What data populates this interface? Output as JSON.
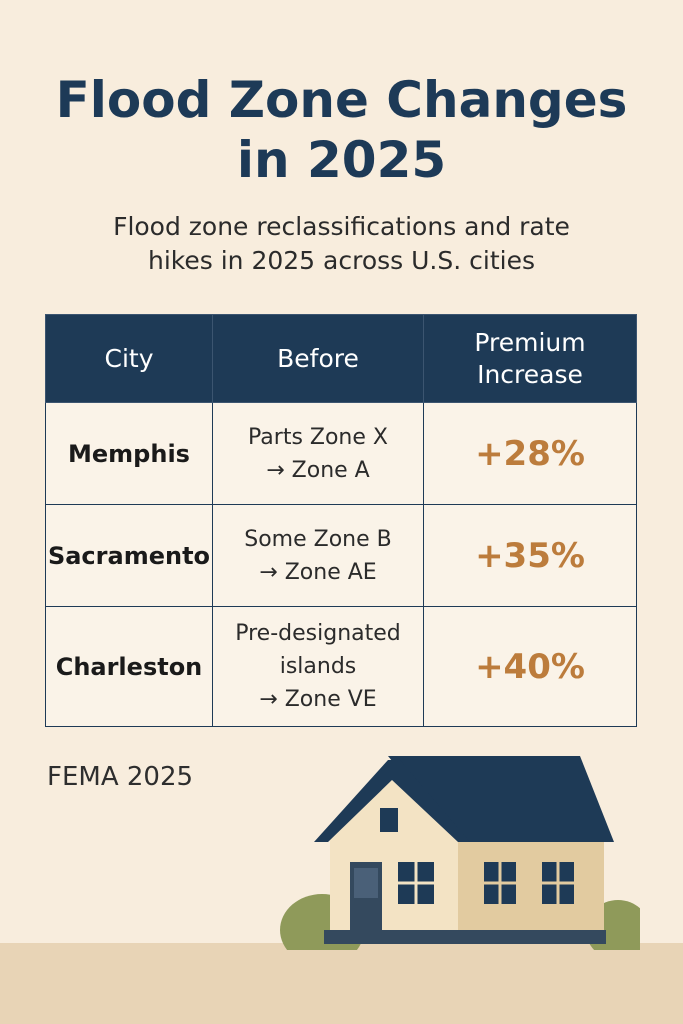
{
  "title": "Flood Zone Changes in 2025",
  "subtitle": "Flood zone reclassifications and rate hikes in 2025 across U.S. cities",
  "table": {
    "headers": [
      "City",
      "Before",
      "Premium Increase"
    ],
    "rows": [
      {
        "city": "Memphis",
        "before_line1": "Parts Zone X",
        "before_line2": "→ Zone A",
        "increase": "+28%"
      },
      {
        "city": "Sacramento",
        "before_line1": "Some Zone B",
        "before_line2": "→ Zone AE",
        "increase": "+35%"
      },
      {
        "city": "Charleston",
        "before_line1": "Pre-designated",
        "before_line2": "islands",
        "before_line3": "→ Zone VE",
        "increase": "+40%"
      }
    ]
  },
  "source": "FEMA 2025",
  "illustration": "house-icon",
  "colors": {
    "background": "#f8eddd",
    "header": "#1e3a56",
    "accent": "#bc7c3c",
    "title": "#1d3a57"
  }
}
